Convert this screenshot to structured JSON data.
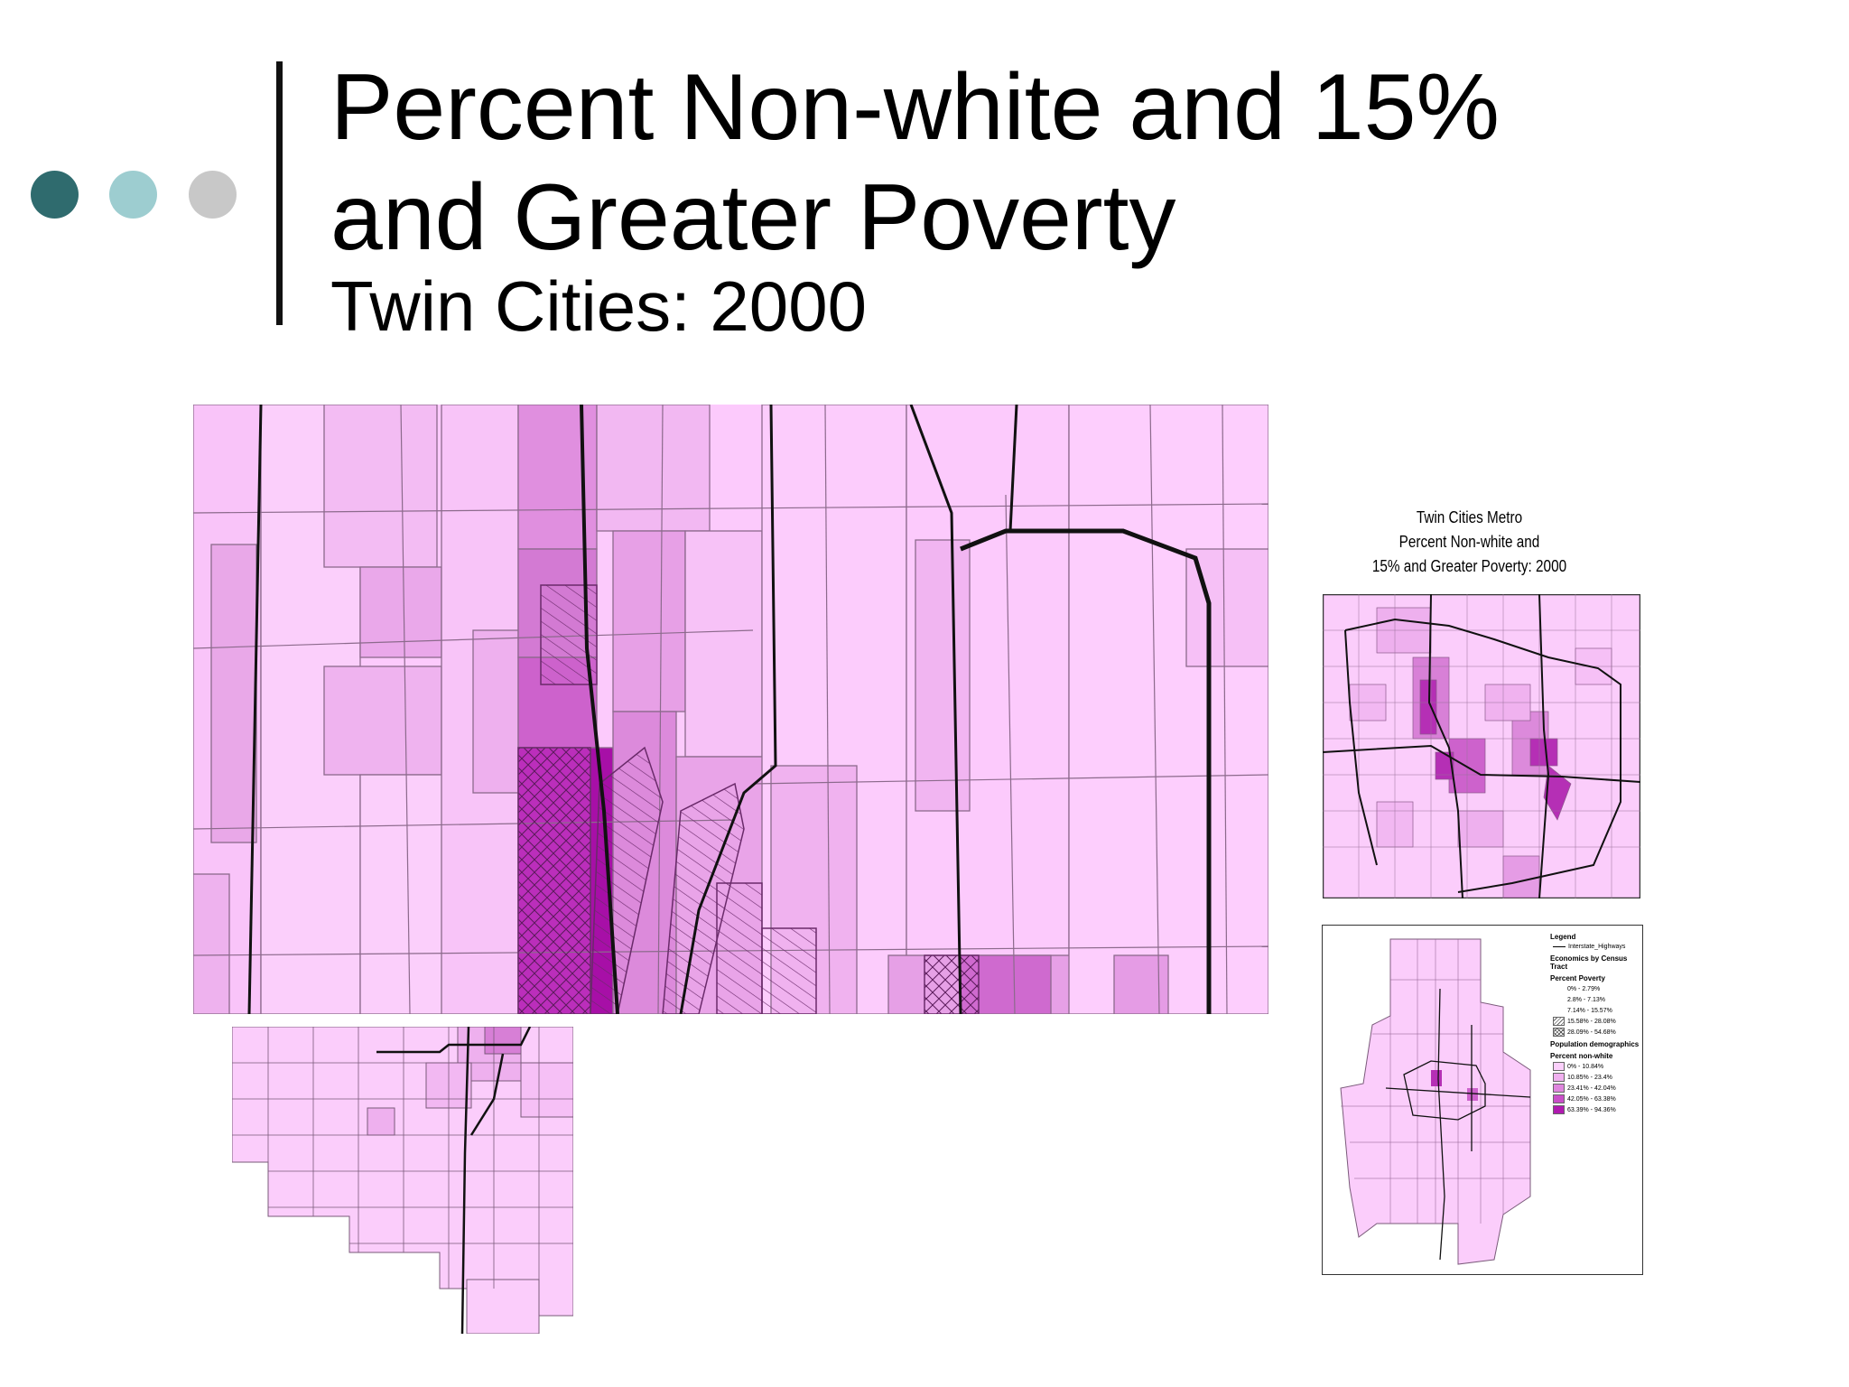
{
  "slide": {
    "title": "Percent Non-white and 15%\nand Greater Poverty",
    "subtitle": "Twin Cities: 2000",
    "dot_colors": [
      "#2f6b6e",
      "#9dcdd0",
      "#c8c8c8"
    ]
  },
  "metro_map": {
    "title_lines": [
      "Twin Cities Metro",
      "Percent Non-white and",
      "15% and Greater Poverty: 2000"
    ]
  },
  "legend": {
    "heading": "Legend",
    "highway_label": "Interstate_Highways",
    "group_title": "Economics by Census Tract",
    "poverty_title": "Percent Poverty",
    "poverty_classes": [
      "0% - 2.79%",
      "2.8% - 7.13%",
      "7.14% - 15.57%",
      "15.58% - 28.08%",
      "28.09% - 54.68%"
    ],
    "demographics_title": "Population demographics",
    "nonwhite_title": "Percent non-white",
    "nonwhite_classes": [
      "0% - 10.84%",
      "10.85% - 23.4%",
      "23.41% - 42.04%",
      "42.05% - 63.38%",
      "63.39% - 94.36%"
    ],
    "nonwhite_colors": [
      "#fbd0fb",
      "#f0b0ef",
      "#df86de",
      "#c94fc8",
      "#b01ab0"
    ]
  }
}
